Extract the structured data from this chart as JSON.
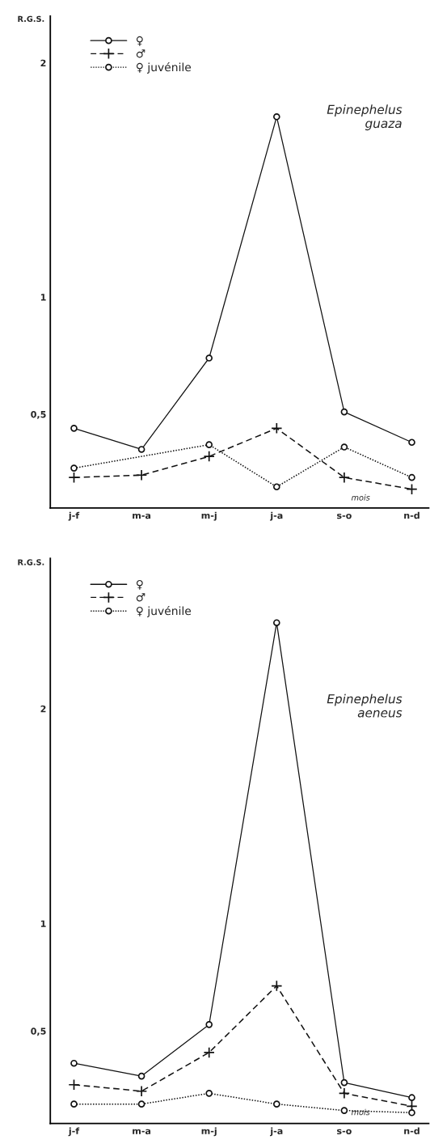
{
  "chart_data": [
    {
      "type": "line",
      "title": "Epinephelus\nguaza",
      "ylabel": "R.G.S.",
      "xlabel": "mois",
      "categories": [
        "j-f",
        "m-a",
        "m-j",
        "j-a",
        "s-o",
        "n-d"
      ],
      "series": [
        {
          "name": "♀",
          "color": "#111111",
          "line_style": "solid",
          "marker": "circle",
          "values": [
            0.44,
            0.35,
            0.74,
            1.77,
            0.51,
            0.38
          ]
        },
        {
          "name": "♂",
          "color": "#111111",
          "line_style": "dashed",
          "marker": "cross",
          "values": [
            0.23,
            0.24,
            0.32,
            0.44,
            0.23,
            0.18
          ]
        },
        {
          "name": "♀ juvénile",
          "color": "#111111",
          "line_style": "dotted",
          "marker": "circle",
          "values": [
            0.27,
            null,
            0.37,
            0.19,
            0.36,
            0.23
          ]
        }
      ],
      "ylim": [
        0.1,
        2.2
      ],
      "yticks": [
        {
          "value": 0.5,
          "label": "0,5"
        },
        1,
        2
      ],
      "legend": "top left",
      "grid": false
    },
    {
      "type": "line",
      "title": "Epinephelus\naeneus",
      "ylabel": "R.G.S.",
      "xlabel": "mois",
      "categories": [
        "j-f",
        "m-a",
        "m-j",
        "j-a",
        "s-o",
        "n-d"
      ],
      "series": [
        {
          "name": "♀",
          "color": "#111111",
          "line_style": "solid",
          "marker": "circle",
          "values": [
            0.35,
            0.29,
            0.53,
            2.4,
            0.26,
            0.19
          ]
        },
        {
          "name": "♂",
          "color": "#111111",
          "line_style": "dashed",
          "marker": "cross",
          "values": [
            0.25,
            0.22,
            0.4,
            0.71,
            0.21,
            0.15
          ]
        },
        {
          "name": "♀ juvénile",
          "color": "#111111",
          "line_style": "dotted",
          "marker": "circle",
          "values": [
            0.16,
            0.16,
            0.21,
            0.16,
            0.13,
            0.12
          ]
        }
      ],
      "ylim": [
        0.07,
        2.7
      ],
      "yticks": [
        {
          "value": 0.5,
          "label": "0,5"
        },
        1,
        2
      ],
      "legend": "top left",
      "grid": false
    }
  ]
}
